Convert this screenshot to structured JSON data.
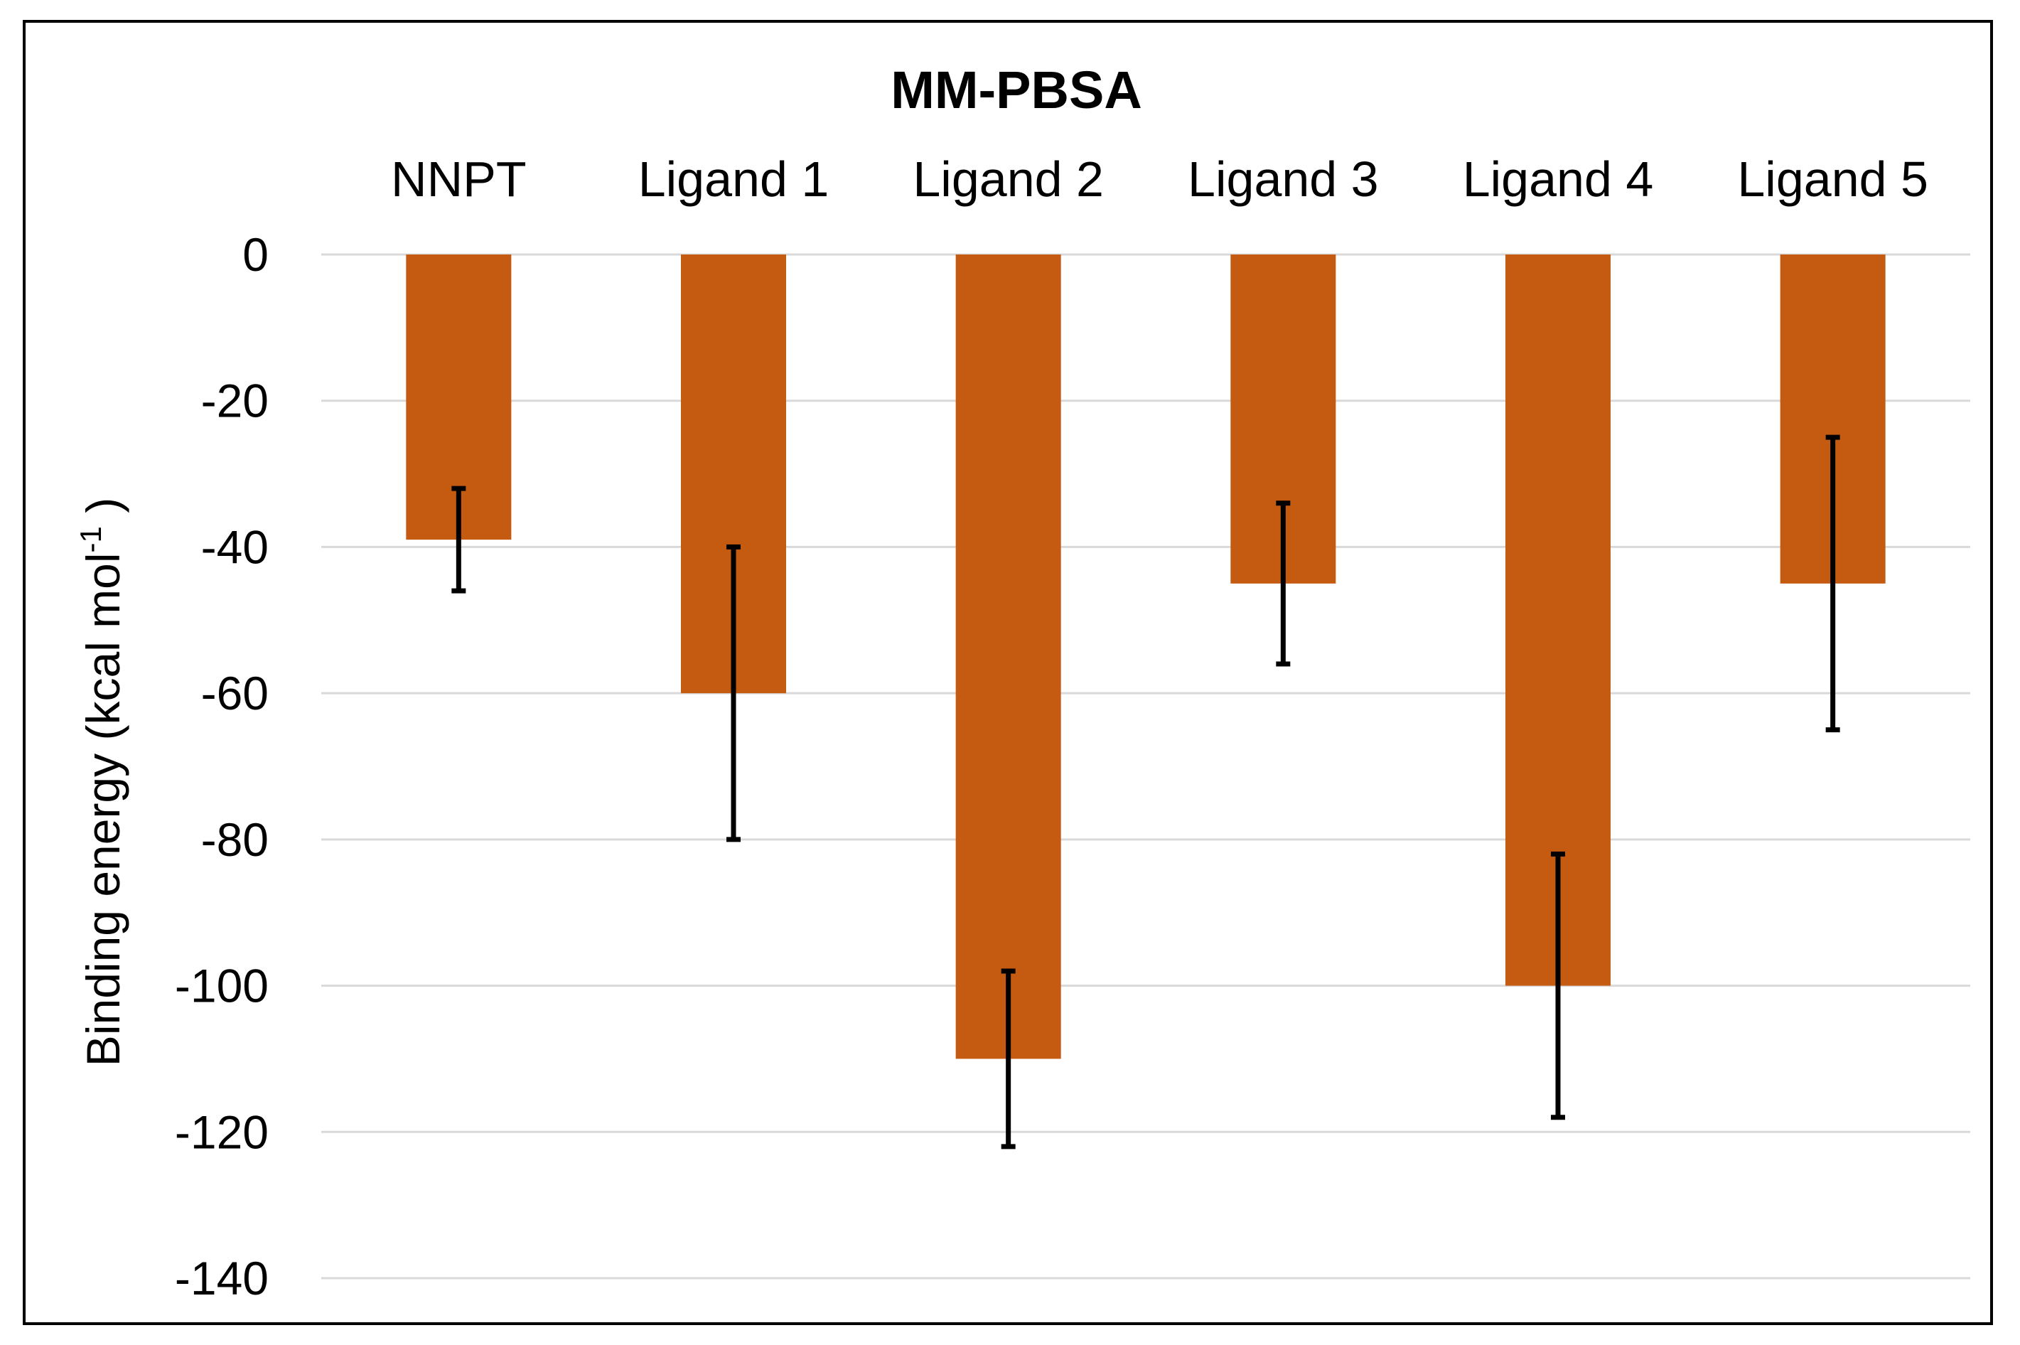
{
  "chart_data": {
    "type": "bar",
    "title": "MM-PBSA",
    "categories": [
      "NNPT",
      "Ligand 1",
      "Ligand 2",
      "Ligand 3",
      "Ligand 4",
      "Ligand 5"
    ],
    "values": [
      -39,
      -60,
      -110,
      -45,
      -100,
      -45
    ],
    "errors_low": [
      -46,
      -80,
      -122,
      -56,
      -118,
      -65
    ],
    "errors_high": [
      -32,
      -40,
      -98,
      -34,
      -82,
      -25
    ],
    "xlabel": "",
    "ylabel": "Binding energy (kcal mol",
    "ylabel_sup": "-1",
    "ylabel_close": " )",
    "ylim": [
      -140,
      0
    ],
    "yticks": [
      0,
      -20,
      -40,
      -60,
      -80,
      -100,
      -120,
      -140
    ],
    "ytick_labels": [
      "0",
      "-20",
      "-40",
      "-60",
      "-80",
      "-100",
      "-120",
      "-140"
    ],
    "grid": true,
    "category_axis_position": "top",
    "bar_color": "#C55A11",
    "error_bar_color": "#000000",
    "gridline_color": "#D9D9D9"
  }
}
